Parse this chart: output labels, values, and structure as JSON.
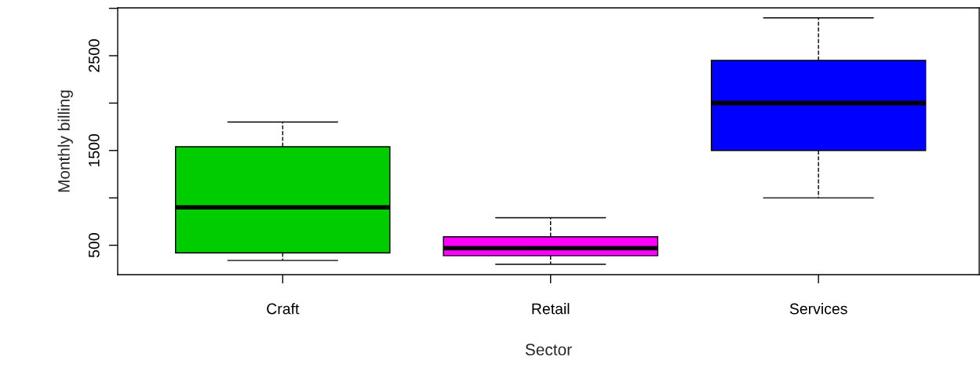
{
  "chart_data": {
    "type": "box",
    "xlabel": "Sector",
    "ylabel": "Monthly billing",
    "categories": [
      "Craft",
      "Retail",
      "Services"
    ],
    "colors": [
      "#00cd00",
      "#ff00ff",
      "#0000ff"
    ],
    "boxes": [
      {
        "low": 340,
        "q1": 420,
        "median": 900,
        "q3": 1540,
        "high": 1800
      },
      {
        "low": 300,
        "q1": 390,
        "median": 470,
        "q3": 590,
        "high": 790
      },
      {
        "low": 1000,
        "q1": 1500,
        "median": 2000,
        "q3": 2450,
        "high": 2900
      }
    ],
    "ylim": [
      190,
      3005
    ],
    "yticks": [
      500,
      {
        "value": 1000,
        "label": null
      },
      1500,
      {
        "value": 2000,
        "label": null
      },
      2500,
      {
        "value": 3000,
        "label": null
      }
    ],
    "grid": false,
    "legend": false
  }
}
